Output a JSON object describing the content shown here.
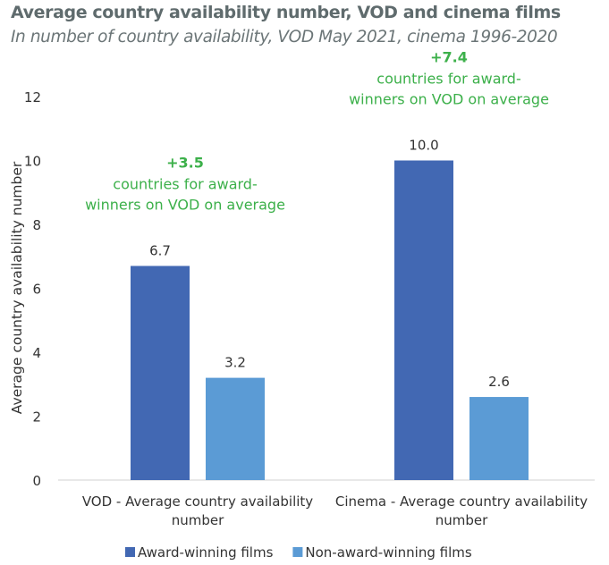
{
  "chart_data": {
    "type": "bar",
    "title": "Average country availability number, VOD and cinema films",
    "subtitle": "In number of country availability, VOD May 2021, cinema 1996-2020",
    "categories": [
      "VOD - Average country availability number",
      "Cinema - Average country availability number"
    ],
    "category_lines": [
      [
        "VOD - Average country availability",
        "number"
      ],
      [
        "Cinema - Average country availability",
        "number"
      ]
    ],
    "series": [
      {
        "name": "Award-winning films",
        "values": [
          6.7,
          10.0
        ],
        "labels": [
          "6.7",
          "10.0"
        ],
        "color": "#4268b3"
      },
      {
        "name": "Non-award-winning films",
        "values": [
          3.2,
          2.6
        ],
        "labels": [
          "3.2",
          "2.6"
        ],
        "color": "#5b9bd5"
      }
    ],
    "ylabel": "Average country availability number",
    "xlabel": "",
    "ylim": [
      0,
      12
    ],
    "yticks": [
      0,
      2,
      4,
      6,
      8,
      10,
      12
    ],
    "grid": false,
    "legend": "bottom",
    "annotations": [
      {
        "headline": "+3.5",
        "lines": [
          "countries for award-",
          "winners on VOD on average"
        ],
        "category": 0
      },
      {
        "headline": "+7.4",
        "lines": [
          "countries for award-",
          "winners on VOD on average"
        ],
        "category": 1
      }
    ],
    "annotation_color": "#3cb04a"
  }
}
